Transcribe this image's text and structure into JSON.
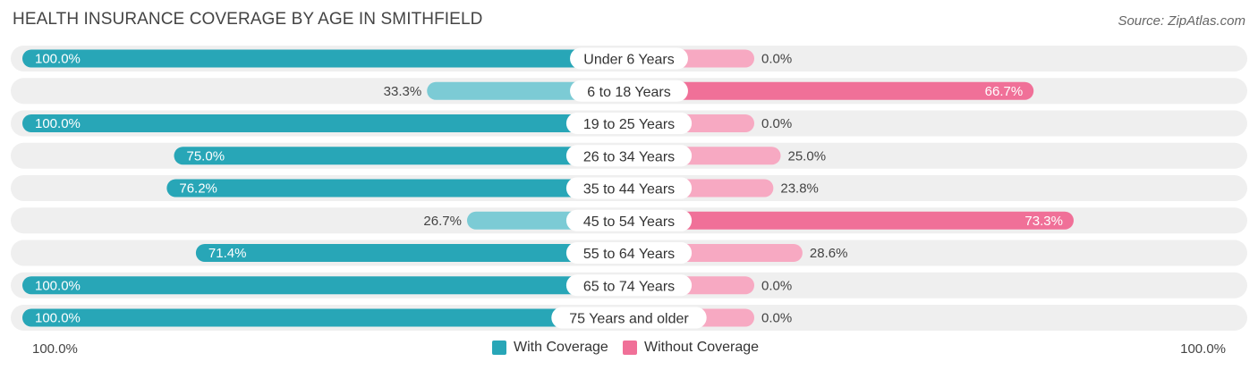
{
  "header": {
    "title": "HEALTH INSURANCE COVERAGE BY AGE IN SMITHFIELD",
    "source": "Source: ZipAtlas.com"
  },
  "colors": {
    "with_strong": "#28a6b7",
    "with_light": "#7ccbd5",
    "without_strong": "#f07098",
    "without_light": "#f7a9c2",
    "track": "#efefef"
  },
  "chart_data": {
    "type": "bar",
    "orientation": "horizontal-diverging",
    "title": "HEALTH INSURANCE COVERAGE BY AGE IN SMITHFIELD",
    "categories": [
      "Under 6 Years",
      "6 to 18 Years",
      "19 to 25 Years",
      "26 to 34 Years",
      "35 to 44 Years",
      "45 to 54 Years",
      "55 to 64 Years",
      "65 to 74 Years",
      "75 Years and older"
    ],
    "series": [
      {
        "name": "With Coverage",
        "values": [
          100.0,
          33.3,
          100.0,
          75.0,
          76.2,
          26.7,
          71.4,
          100.0,
          100.0
        ],
        "labels": [
          "100.0%",
          "33.3%",
          "100.0%",
          "75.0%",
          "76.2%",
          "26.7%",
          "71.4%",
          "100.0%",
          "100.0%"
        ]
      },
      {
        "name": "Without Coverage",
        "values": [
          0.0,
          66.7,
          0.0,
          25.0,
          23.8,
          73.3,
          28.6,
          0.0,
          0.0
        ],
        "labels": [
          "0.0%",
          "66.7%",
          "0.0%",
          "25.0%",
          "23.8%",
          "73.3%",
          "28.6%",
          "0.0%",
          "0.0%"
        ]
      }
    ],
    "xlim": [
      0,
      100
    ],
    "axis_left_label": "100.0%",
    "axis_right_label": "100.0%",
    "legend": [
      "With Coverage",
      "Without Coverage"
    ],
    "legend_position": "bottom-center"
  }
}
